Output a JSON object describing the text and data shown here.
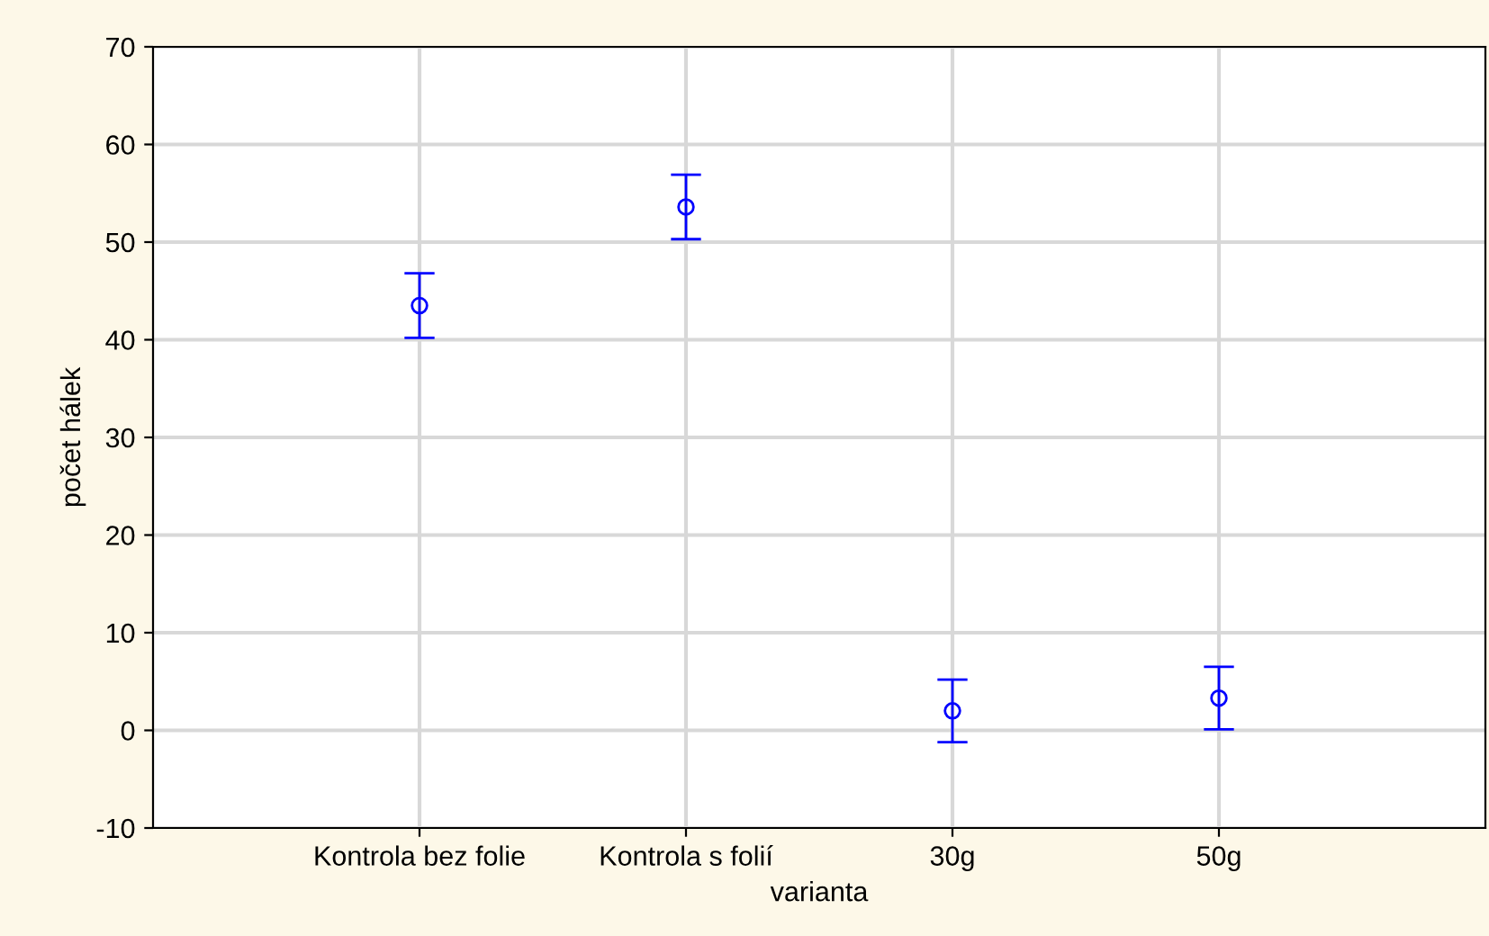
{
  "chart_data": {
    "type": "scatter",
    "xlabel": "varianta",
    "ylabel": "počet hálek",
    "categories": [
      "Kontrola bez folie",
      "Kontrola s folií",
      "30g",
      "50g"
    ],
    "series": [
      {
        "color": "#0000ff",
        "values": [
          43.5,
          53.6,
          2.0,
          3.3
        ],
        "errors": [
          3.3,
          3.3,
          3.2,
          3.2
        ]
      }
    ],
    "ylim": [
      -10,
      70
    ],
    "yticks": [
      -10,
      0,
      10,
      20,
      30,
      40,
      50,
      60,
      70
    ],
    "grid": true,
    "marker": "circle"
  }
}
